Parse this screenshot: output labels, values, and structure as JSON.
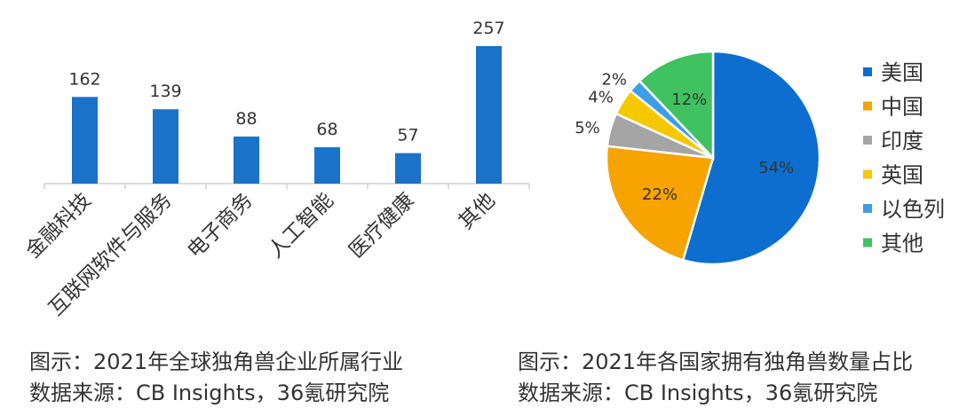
{
  "chart_data": [
    {
      "type": "bar",
      "categories": [
        "金融科技",
        "互联网软件与服务",
        "电子商务",
        "人工智能",
        "医疗健康",
        "其他"
      ],
      "values": [
        162,
        139,
        88,
        68,
        57,
        257
      ],
      "ylim": [
        0,
        257
      ],
      "grid": false,
      "color": "#1a72c9",
      "caption": "图示：2021年全球独角兽企业所属行业",
      "source": "数据来源：CB Insights，36氪研究院"
    },
    {
      "type": "pie",
      "labels": [
        "美国",
        "中国",
        "印度",
        "英国",
        "以色列",
        "其他"
      ],
      "values": [
        54,
        22,
        5,
        4,
        2,
        12
      ],
      "value_labels": [
        "54%",
        "22%",
        "5%",
        "4%",
        "2%",
        "12%"
      ],
      "colors": [
        "#0d6ecf",
        "#f7a300",
        "#a5a5a5",
        "#f5c800",
        "#3b9ee6",
        "#3fc25f"
      ],
      "legend_position": "right",
      "caption": "图示：2021年各国家拥有独角兽数量占比",
      "source": "数据来源：CB Insights，36氪研究院"
    }
  ]
}
